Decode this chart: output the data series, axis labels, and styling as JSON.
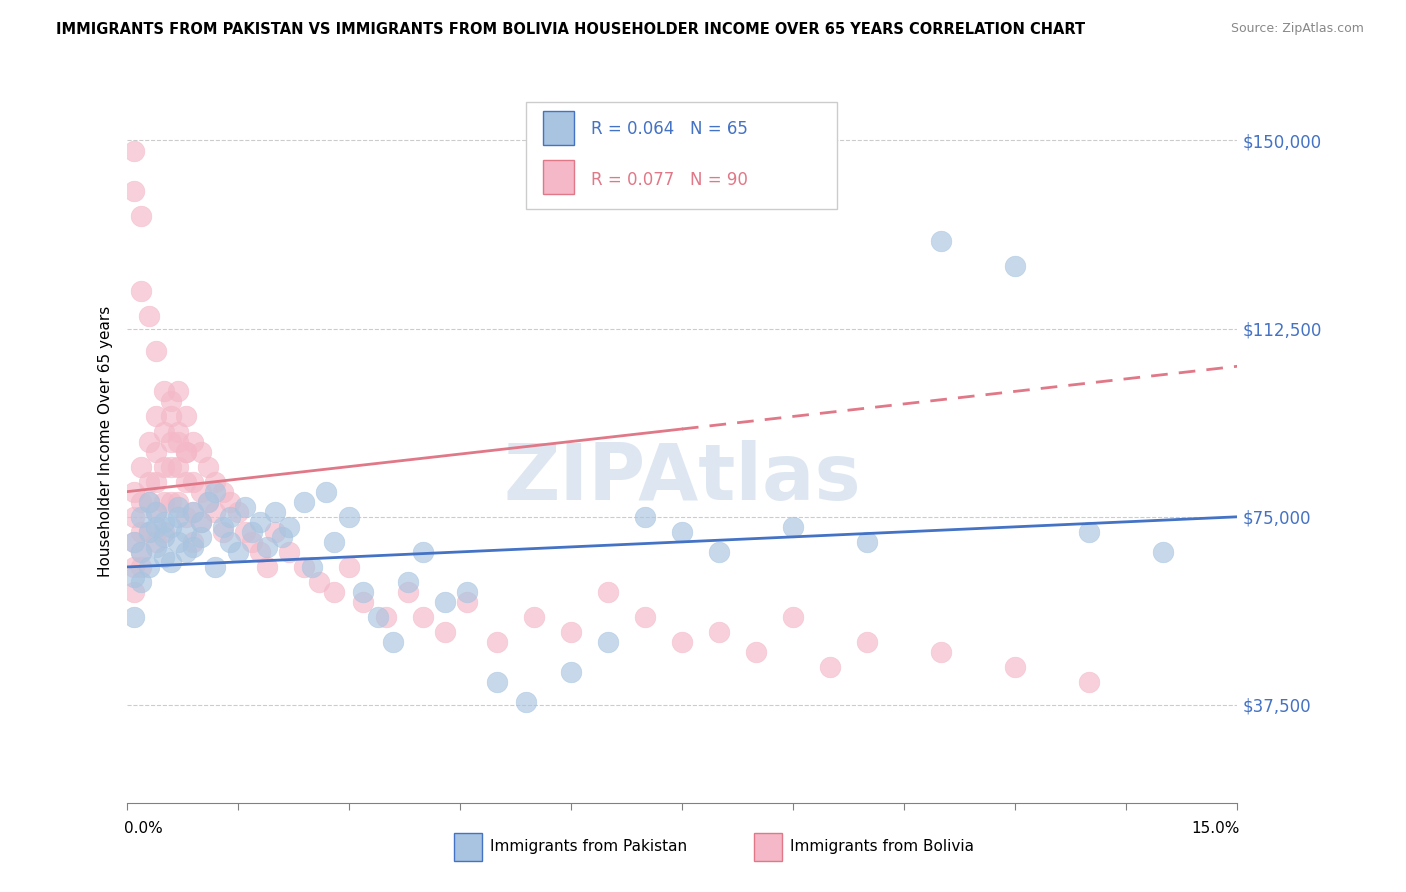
{
  "title": "IMMIGRANTS FROM PAKISTAN VS IMMIGRANTS FROM BOLIVIA HOUSEHOLDER INCOME OVER 65 YEARS CORRELATION CHART",
  "source": "Source: ZipAtlas.com",
  "ylabel": "Householder Income Over 65 years",
  "y_ticks": [
    37500,
    75000,
    112500,
    150000
  ],
  "y_tick_labels": [
    "$37,500",
    "$75,000",
    "$112,500",
    "$150,000"
  ],
  "x_min": 0.0,
  "x_max": 0.15,
  "y_min": 18000,
  "y_max": 162000,
  "pakistan_color": "#a8c4e0",
  "bolivia_color": "#f4b8c8",
  "pakistan_line_color": "#4472c4",
  "bolivia_line_color": "#e07888",
  "pakistan_data_x": [
    0.001,
    0.001,
    0.001,
    0.002,
    0.002,
    0.002,
    0.003,
    0.003,
    0.003,
    0.004,
    0.004,
    0.004,
    0.005,
    0.005,
    0.005,
    0.006,
    0.006,
    0.007,
    0.007,
    0.007,
    0.008,
    0.008,
    0.009,
    0.009,
    0.01,
    0.01,
    0.011,
    0.012,
    0.012,
    0.013,
    0.014,
    0.014,
    0.015,
    0.016,
    0.017,
    0.018,
    0.019,
    0.02,
    0.021,
    0.022,
    0.024,
    0.025,
    0.027,
    0.028,
    0.03,
    0.032,
    0.034,
    0.036,
    0.038,
    0.04,
    0.043,
    0.046,
    0.05,
    0.054,
    0.06,
    0.065,
    0.07,
    0.075,
    0.08,
    0.09,
    0.1,
    0.11,
    0.12,
    0.13,
    0.14
  ],
  "pakistan_data_y": [
    63000,
    70000,
    55000,
    68000,
    75000,
    62000,
    72000,
    65000,
    78000,
    73000,
    69000,
    76000,
    71000,
    67000,
    74000,
    66000,
    73000,
    77000,
    70000,
    75000,
    68000,
    72000,
    76000,
    69000,
    74000,
    71000,
    78000,
    65000,
    80000,
    73000,
    70000,
    75000,
    68000,
    77000,
    72000,
    74000,
    69000,
    76000,
    71000,
    73000,
    78000,
    65000,
    80000,
    70000,
    75000,
    60000,
    55000,
    50000,
    62000,
    68000,
    58000,
    60000,
    42000,
    38000,
    44000,
    50000,
    75000,
    72000,
    68000,
    73000,
    70000,
    130000,
    125000,
    72000,
    68000
  ],
  "bolivia_data_x": [
    0.001,
    0.001,
    0.001,
    0.001,
    0.001,
    0.002,
    0.002,
    0.002,
    0.002,
    0.002,
    0.003,
    0.003,
    0.003,
    0.003,
    0.004,
    0.004,
    0.004,
    0.004,
    0.004,
    0.005,
    0.005,
    0.005,
    0.005,
    0.006,
    0.006,
    0.006,
    0.006,
    0.007,
    0.007,
    0.007,
    0.007,
    0.008,
    0.008,
    0.008,
    0.008,
    0.009,
    0.009,
    0.009,
    0.009,
    0.01,
    0.01,
    0.01,
    0.011,
    0.011,
    0.012,
    0.012,
    0.013,
    0.013,
    0.014,
    0.015,
    0.016,
    0.017,
    0.018,
    0.019,
    0.02,
    0.022,
    0.024,
    0.026,
    0.028,
    0.03,
    0.032,
    0.035,
    0.038,
    0.04,
    0.043,
    0.046,
    0.05,
    0.055,
    0.06,
    0.065,
    0.07,
    0.075,
    0.08,
    0.085,
    0.09,
    0.095,
    0.1,
    0.11,
    0.12,
    0.13,
    0.001,
    0.001,
    0.002,
    0.002,
    0.003,
    0.004,
    0.005,
    0.006,
    0.007,
    0.008
  ],
  "bolivia_data_y": [
    80000,
    75000,
    70000,
    65000,
    60000,
    85000,
    78000,
    72000,
    68000,
    65000,
    90000,
    82000,
    78000,
    72000,
    95000,
    88000,
    82000,
    76000,
    70000,
    92000,
    85000,
    78000,
    72000,
    98000,
    90000,
    85000,
    78000,
    100000,
    92000,
    85000,
    78000,
    95000,
    88000,
    82000,
    75000,
    90000,
    82000,
    76000,
    70000,
    88000,
    80000,
    74000,
    85000,
    78000,
    82000,
    76000,
    80000,
    72000,
    78000,
    76000,
    72000,
    70000,
    68000,
    65000,
    72000,
    68000,
    65000,
    62000,
    60000,
    65000,
    58000,
    55000,
    60000,
    55000,
    52000,
    58000,
    50000,
    55000,
    52000,
    60000,
    55000,
    50000,
    52000,
    48000,
    55000,
    45000,
    50000,
    48000,
    45000,
    42000,
    140000,
    148000,
    135000,
    120000,
    115000,
    108000,
    100000,
    95000,
    90000,
    88000
  ]
}
